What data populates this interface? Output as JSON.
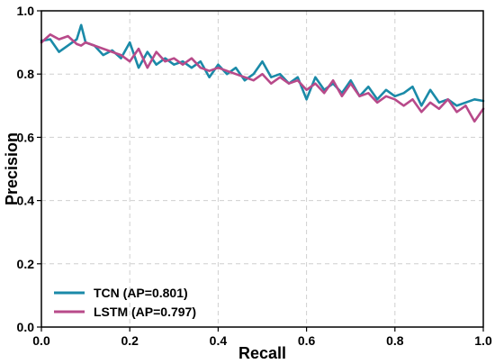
{
  "chart_data": {
    "type": "line",
    "title": "",
    "xlabel": "Recall",
    "ylabel": "Precision",
    "xlim": [
      0.0,
      1.0
    ],
    "ylim": [
      0.0,
      1.0
    ],
    "x_ticks": [
      "0.0",
      "0.2",
      "0.4",
      "0.6",
      "0.8",
      "1.0"
    ],
    "y_ticks": [
      "0.0",
      "0.2",
      "0.4",
      "0.6",
      "0.8",
      "1.0"
    ],
    "grid": true,
    "legend_position": "bottom-left",
    "x": [
      0.0,
      0.02,
      0.04,
      0.06,
      0.08,
      0.09,
      0.1,
      0.12,
      0.14,
      0.16,
      0.18,
      0.2,
      0.22,
      0.24,
      0.26,
      0.28,
      0.3,
      0.32,
      0.34,
      0.36,
      0.38,
      0.4,
      0.42,
      0.44,
      0.46,
      0.48,
      0.5,
      0.52,
      0.54,
      0.56,
      0.58,
      0.6,
      0.62,
      0.64,
      0.66,
      0.68,
      0.7,
      0.72,
      0.74,
      0.76,
      0.78,
      0.8,
      0.82,
      0.84,
      0.86,
      0.88,
      0.9,
      0.92,
      0.94,
      0.96,
      0.98,
      1.0
    ],
    "series": [
      {
        "name": "TCN (AP=0.801)",
        "color": "#1a8aa8",
        "values": [
          0.905,
          0.91,
          0.87,
          0.89,
          0.91,
          0.955,
          0.9,
          0.89,
          0.86,
          0.875,
          0.85,
          0.9,
          0.82,
          0.87,
          0.83,
          0.85,
          0.83,
          0.84,
          0.82,
          0.84,
          0.79,
          0.83,
          0.8,
          0.82,
          0.78,
          0.8,
          0.84,
          0.79,
          0.8,
          0.77,
          0.79,
          0.72,
          0.79,
          0.75,
          0.77,
          0.74,
          0.78,
          0.73,
          0.76,
          0.72,
          0.75,
          0.73,
          0.74,
          0.76,
          0.7,
          0.75,
          0.71,
          0.72,
          0.7,
          0.71,
          0.72,
          0.715
        ]
      },
      {
        "name": "LSTM (AP=0.797)",
        "color": "#b84a8a",
        "values": [
          0.9,
          0.925,
          0.91,
          0.92,
          0.895,
          0.89,
          0.9,
          0.89,
          0.88,
          0.87,
          0.86,
          0.84,
          0.88,
          0.82,
          0.87,
          0.84,
          0.85,
          0.83,
          0.85,
          0.82,
          0.81,
          0.82,
          0.81,
          0.8,
          0.79,
          0.78,
          0.8,
          0.77,
          0.79,
          0.77,
          0.78,
          0.75,
          0.77,
          0.74,
          0.78,
          0.73,
          0.77,
          0.73,
          0.74,
          0.71,
          0.73,
          0.72,
          0.7,
          0.72,
          0.68,
          0.71,
          0.69,
          0.72,
          0.68,
          0.7,
          0.65,
          0.69
        ]
      }
    ]
  }
}
